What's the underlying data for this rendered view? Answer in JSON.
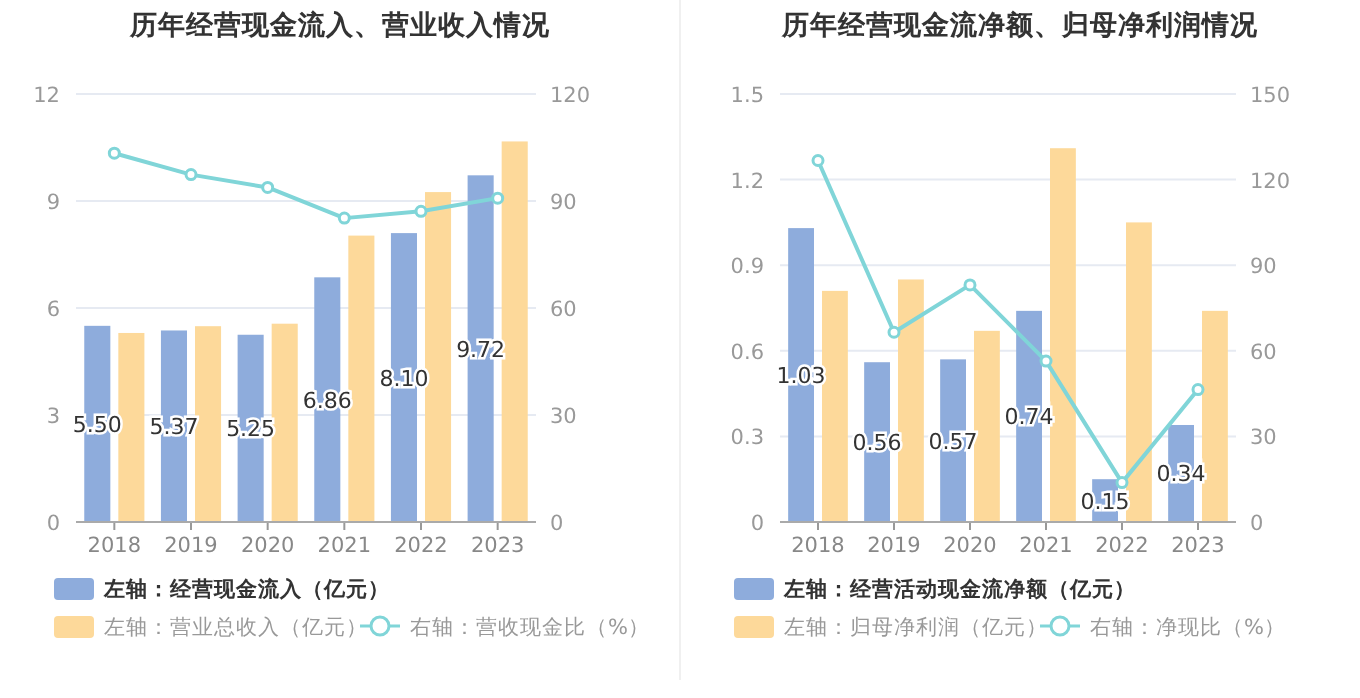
{
  "chart_data": [
    {
      "type": "bar",
      "title": "历年经营现金流入、营业收入情况",
      "categories": [
        "2018",
        "2019",
        "2020",
        "2021",
        "2022",
        "2023"
      ],
      "ylim": [
        0,
        12
      ],
      "yticks": [
        0,
        3,
        6,
        9,
        12
      ],
      "y2lim": [
        0,
        120
      ],
      "y2ticks": [
        0,
        30,
        60,
        90,
        120
      ],
      "grid": "y",
      "legend": "bottom",
      "series": [
        {
          "name": "左轴：经营现金流入（亿元）",
          "color": "#8eacdc",
          "values": [
            5.5,
            5.37,
            5.25,
            6.86,
            8.1,
            9.72
          ],
          "value_labels": [
            "5.50",
            "5.37",
            "5.25",
            "6.86",
            "8.10",
            "9.72"
          ]
        },
        {
          "name": "左轴：营业总收入（亿元）",
          "color": "#fdd99a",
          "values": [
            5.3,
            5.49,
            5.56,
            8.03,
            9.25,
            10.67
          ]
        },
        {
          "name": "右轴：营收现金比（%）",
          "type": "line",
          "axis": "y2",
          "marker": "circle",
          "color": "#80d5d8",
          "values": [
            103.4,
            97.4,
            93.8,
            85.2,
            87.1,
            90.8
          ]
        }
      ]
    },
    {
      "type": "bar",
      "title": "历年经营现金流净额、归母净利润情况",
      "categories": [
        "2018",
        "2019",
        "2020",
        "2021",
        "2022",
        "2023"
      ],
      "ylim": [
        0,
        1.5
      ],
      "yticks": [
        0,
        0.3,
        0.6,
        0.9,
        1.2,
        1.5
      ],
      "y2lim": [
        0,
        150
      ],
      "y2ticks": [
        0,
        30,
        60,
        90,
        120,
        150
      ],
      "grid": "y",
      "legend": "bottom",
      "series": [
        {
          "name": "左轴：经营活动现金流净额（亿元）",
          "color": "#8eacdc",
          "values": [
            1.03,
            0.56,
            0.57,
            0.74,
            0.15,
            0.34
          ],
          "value_labels": [
            "1.03",
            "0.56",
            "0.57",
            "0.74",
            "0.15",
            "0.34"
          ]
        },
        {
          "name": "左轴：归母净利润（亿元）",
          "color": "#fdd99a",
          "values": [
            0.81,
            0.85,
            0.67,
            1.31,
            1.05,
            0.74
          ]
        },
        {
          "name": "右轴：净现比（%）",
          "type": "line",
          "axis": "y2",
          "marker": "circle",
          "color": "#80d5d8",
          "values": [
            126.7,
            66.5,
            83.1,
            56.4,
            13.8,
            46.4
          ]
        }
      ]
    }
  ]
}
